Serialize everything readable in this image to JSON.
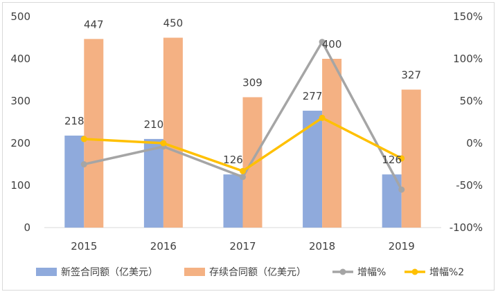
{
  "chart_data": {
    "type": "bar",
    "categories": [
      "2015",
      "2016",
      "2017",
      "2018",
      "2019"
    ],
    "series": [
      {
        "name": "新签合同额（亿美元）",
        "kind": "bar",
        "axis": "left",
        "color": "#8faadc",
        "values": [
          218,
          210,
          126,
          277,
          126
        ]
      },
      {
        "name": "存续合同额（亿美元）",
        "kind": "bar",
        "axis": "left",
        "color": "#f4b183",
        "values": [
          447,
          450,
          309,
          400,
          327
        ]
      },
      {
        "name": "增幅%",
        "kind": "line",
        "axis": "right",
        "color": "#a5a5a5",
        "values": [
          -25,
          -4,
          -40,
          120,
          -55
        ]
      },
      {
        "name": "增幅%2",
        "kind": "line",
        "axis": "right",
        "color": "#ffc000",
        "values": [
          5,
          0,
          -33,
          30,
          -18
        ]
      }
    ],
    "left_axis": {
      "ylim": [
        0,
        500
      ],
      "ticks": [
        "0",
        "100",
        "200",
        "300",
        "400",
        "500"
      ]
    },
    "right_axis": {
      "ylim": [
        -100,
        150
      ],
      "ticks": [
        "-100%",
        "-50%",
        "0%",
        "50%",
        "100%",
        "150%"
      ]
    },
    "grid": false,
    "legend_position": "bottom"
  }
}
